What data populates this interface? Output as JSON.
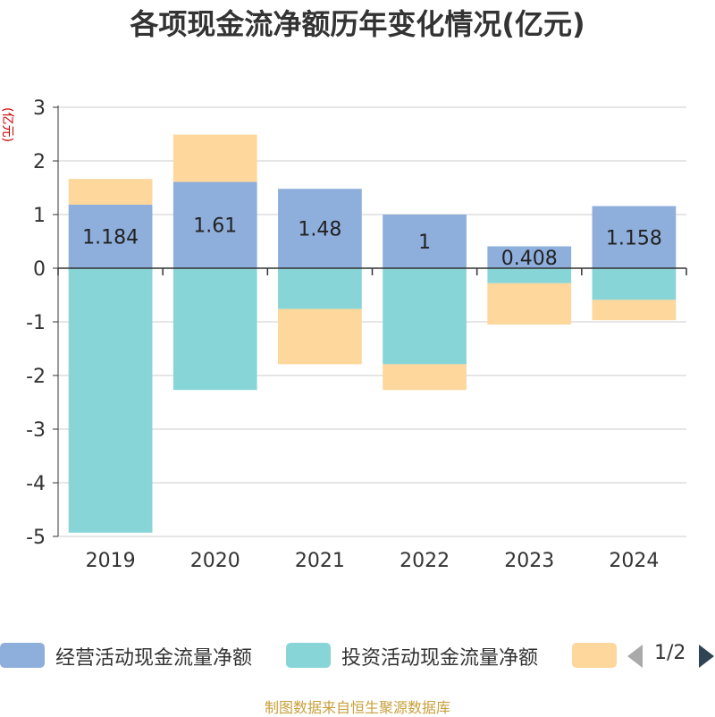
{
  "chart_data": {
    "type": "bar",
    "stacked": true,
    "title": "各项现金流净额历年变化情况(亿元)",
    "ylabel": "(亿元)",
    "categories": [
      "2019",
      "2020",
      "2021",
      "2022",
      "2023",
      "2024"
    ],
    "ylim": [
      -5,
      3
    ],
    "yticks": [
      3,
      2,
      1,
      0,
      -1,
      -2,
      -3,
      -4,
      -5
    ],
    "grid": true,
    "legend_position": "bottom",
    "series": [
      {
        "name": "经营活动现金流量净额",
        "color": "#8eaedb",
        "values": [
          1.184,
          1.61,
          1.48,
          1,
          0.408,
          1.158
        ],
        "labels": [
          "1.184",
          "1.61",
          "1.48",
          "1",
          "0.408",
          "1.158"
        ]
      },
      {
        "name": "投资活动现金流量净额",
        "color": "#88d5d8",
        "values": [
          -4.93,
          -2.27,
          -0.76,
          -1.79,
          -0.28,
          -0.59
        ]
      },
      {
        "color": "#fdd79b",
        "values": [
          0.48,
          0.88,
          -1.03,
          -0.48,
          -0.77,
          -0.38
        ]
      }
    ]
  },
  "legend": {
    "page": "1/2"
  },
  "footer": {
    "source": "制图数据来自恒生聚源数据库"
  }
}
